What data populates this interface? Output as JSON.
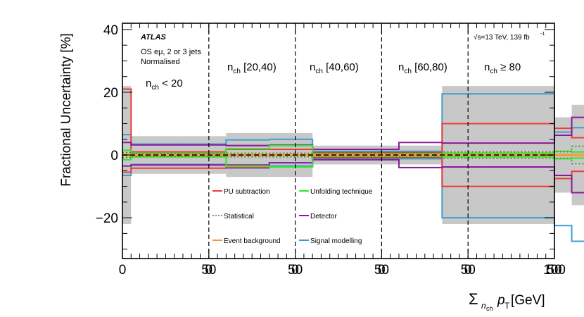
{
  "chart_data": {
    "type": "step",
    "ylabel": "Fractional Uncertainty [%]",
    "xlabel": {
      "sigma": "Σ",
      "sub": "n",
      "subsub": "ch",
      "p": "p",
      "psub": "T",
      "unit": " [GeV]"
    },
    "ylim": [
      -33,
      42
    ],
    "yticks": [
      -20,
      0,
      20,
      40
    ],
    "ytick_labels": [
      "−20",
      "0",
      "20",
      "40"
    ],
    "panel_xlim": [
      0,
      50
    ],
    "panel_ticks": [
      0,
      50
    ],
    "last_tick_label": "100",
    "panels": [
      {
        "label_main": "n",
        "label_sub": "ch",
        "label_rest": " < 20"
      },
      {
        "label_main": "n",
        "label_sub": "ch",
        "label_rest": " [20,40)"
      },
      {
        "label_main": "n",
        "label_sub": "ch",
        "label_rest": " [40,60)"
      },
      {
        "label_main": "n",
        "label_sub": "ch",
        "label_rest": " [60,80)"
      },
      {
        "label_main": "n",
        "label_sub": "ch",
        "label_rest": " ≥ 80"
      }
    ],
    "texts": {
      "atlas": "ATLAS",
      "selection": "OS eμ, 2 or 3 jets",
      "norm": "Normalised",
      "energy": "√s=13 TeV, 139 fb",
      "energy_sup": "-1"
    },
    "colors": {
      "total": "#c8c8c8",
      "pu": "#ef3b3b",
      "stat": "#2e8b2e",
      "bkg": "#f59a3c",
      "unf": "#2ee82e",
      "det": "#8b1a9b",
      "sig": "#3a9fd0"
    },
    "legend": [
      {
        "key": "pu",
        "label": "PU subtraction",
        "style": "solid"
      },
      {
        "key": "unf",
        "label": "Unfolding technique",
        "style": "solid"
      },
      {
        "key": "stat",
        "label": "Statistical",
        "style": "dotted"
      },
      {
        "key": "det",
        "label": "Detector",
        "style": "solid"
      },
      {
        "key": "bkg",
        "label": "Event background",
        "style": "solid"
      },
      {
        "key": "sig",
        "label": "Signal modelling",
        "style": "solid"
      }
    ],
    "bins": [
      0,
      5,
      35,
      60,
      85,
      110,
      160,
      185,
      210,
      250,
      260,
      300
    ],
    "total_band": [
      22,
      6,
      6,
      7,
      7,
      3,
      3,
      22,
      22,
      12,
      16,
      16
    ],
    "series": [
      {
        "key": "sig",
        "name": "Signal modelling",
        "values": [
          6.5,
          3.5,
          3.5,
          4.8,
          5.0,
          1.2,
          1.2,
          19.5,
          19.5,
          7.3,
          8.7,
          8.7
        ]
      },
      {
        "key": "pu",
        "name": "PU subtraction",
        "values": [
          21,
          1.0,
          1.0,
          1.8,
          1.8,
          0.8,
          0.8,
          10,
          10,
          8.5,
          5.5,
          5.5
        ]
      },
      {
        "key": "det",
        "name": "Detector",
        "values": [
          4.0,
          3.2,
          3.2,
          3.0,
          3.2,
          1.8,
          4.0,
          3.8,
          3.8,
          6.3,
          12,
          12
        ]
      },
      {
        "key": "unf",
        "name": "Unfolding technique",
        "values": [
          1.5,
          0.6,
          0.6,
          2.0,
          3.0,
          0.4,
          0.4,
          0.6,
          0.6,
          1.2,
          1.0,
          1.0
        ]
      },
      {
        "key": "stat",
        "name": "Statistical",
        "values": [
          0.8,
          0.5,
          0.5,
          0.6,
          0.6,
          0.7,
          0.7,
          1.0,
          1.0,
          1.0,
          2.8,
          2.8
        ]
      },
      {
        "key": "bkg",
        "name": "Event background",
        "values": [
          0.3,
          0.2,
          0.2,
          0.2,
          0.2,
          0.2,
          0.2,
          0.2,
          0.2,
          0.2,
          0.3,
          0.3
        ]
      }
    ],
    "series_down": [
      {
        "key": "sig",
        "values": [
          -6.5,
          -3.0,
          -3.0,
          -4.2,
          -3.5,
          -1.2,
          -1.2,
          -20,
          -20,
          -22.5,
          -27.5,
          -27.5
        ]
      },
      {
        "key": "pu",
        "values": [
          -5.5,
          -4.2,
          -4.2,
          -4.0,
          -3.8,
          -0.8,
          -0.8,
          -10,
          -10,
          -7.5,
          -5.2,
          -5.2
        ]
      },
      {
        "key": "det",
        "values": [
          -3.5,
          -3.2,
          -3.2,
          -3.2,
          -2.5,
          -1.5,
          -4.0,
          -3.8,
          -3.8,
          -6.5,
          -12,
          -12
        ]
      },
      {
        "key": "unf",
        "values": [
          -1.5,
          -0.6,
          -0.6,
          -3.5,
          -3.8,
          -0.4,
          -0.4,
          -0.6,
          -0.6,
          -1.2,
          -1.0,
          -1.0
        ]
      },
      {
        "key": "stat",
        "values": [
          -0.8,
          -0.5,
          -0.5,
          -0.6,
          -0.6,
          -0.7,
          -0.7,
          -1.0,
          -1.0,
          -1.0,
          -2.8,
          -2.8
        ]
      },
      {
        "key": "bkg",
        "values": [
          -0.2,
          -0.2,
          -0.2,
          -0.2,
          -0.2,
          -0.2,
          -0.2,
          -0.2,
          -0.2,
          -0.2,
          -0.3,
          -0.3
        ]
      }
    ]
  }
}
